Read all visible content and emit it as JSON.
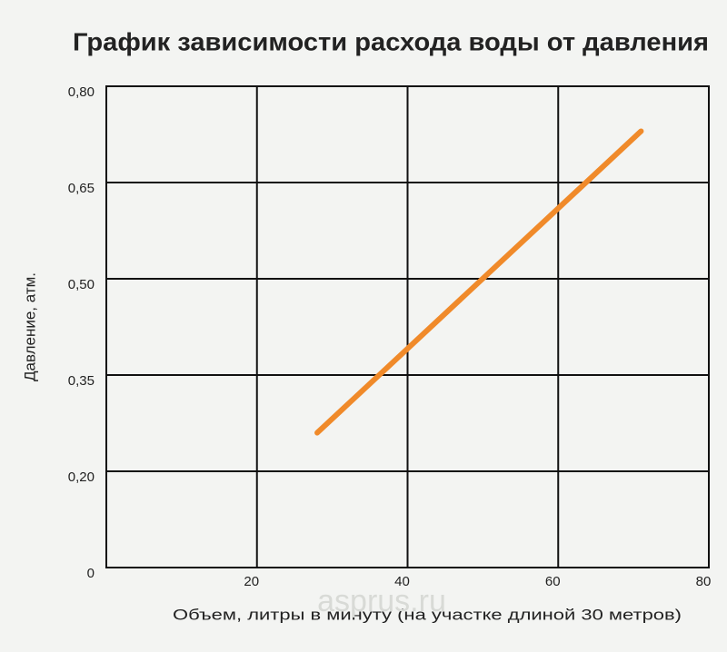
{
  "chart_data": {
    "type": "line",
    "title": "График зависимости расхода воды от давления",
    "x_label": "Объем, литры в минуту (на участке длиной 30 метров)",
    "y_label": "Давление, атм.",
    "watermark": "asprus.ru",
    "xlim": [
      0,
      80
    ],
    "xticks": [
      20,
      40,
      60,
      80
    ],
    "ylim": [
      0,
      0.8
    ],
    "yticks": [
      0,
      {
        "value": 0.2,
        "label": "0,20"
      },
      {
        "value": 0.35,
        "label": "0,35"
      },
      {
        "value": 0.5,
        "label": "0,50"
      },
      {
        "value": 0.65,
        "label": "0,65"
      },
      {
        "value": 0.8,
        "label": "0,80"
      }
    ],
    "grid": true,
    "x": [
      28,
      71
    ],
    "series": [
      {
        "color": "#f08a2a",
        "values": [
          0.26,
          0.73
        ]
      }
    ]
  }
}
